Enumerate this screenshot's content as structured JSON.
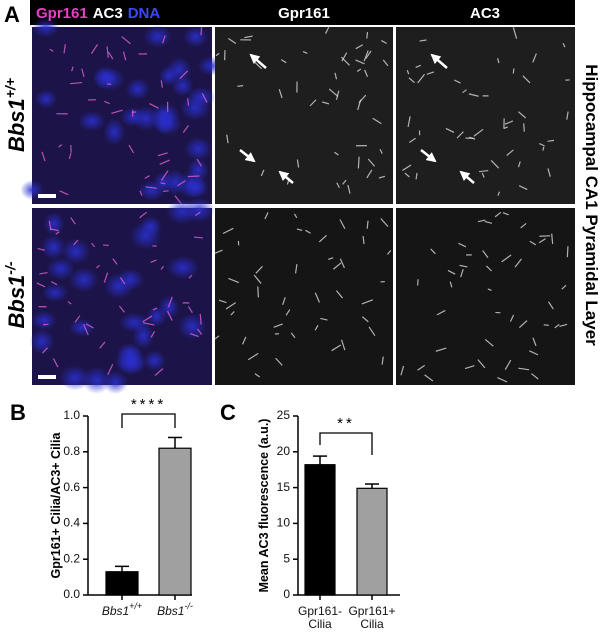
{
  "panel_a": {
    "label": "A",
    "header": {
      "merge": [
        {
          "text": "Gpr161",
          "color": "#e83ec8"
        },
        {
          "text": "AC3",
          "color": "#ffffff"
        },
        {
          "text": "DNA",
          "color": "#3b47ff"
        }
      ],
      "columns": [
        "Gpr161",
        "AC3"
      ]
    },
    "rows": [
      {
        "text": "Bbs1",
        "superscript": "+/+"
      },
      {
        "text": "Bbs1",
        "superscript": "-/-"
      }
    ],
    "side_label": "Hippocampal CA1 Pyramidal Layer"
  },
  "chart_data": [
    {
      "type": "bar",
      "panel_label": "B",
      "ylabel": "Gpr161+ Cilia/AC3+ Cilia",
      "categories": [
        {
          "text": "Bbs1",
          "superscript": "+/+"
        },
        {
          "text": "Bbs1",
          "superscript": "-/-"
        }
      ],
      "values": [
        0.13,
        0.82
      ],
      "errors": [
        0.03,
        0.06
      ],
      "colors": [
        "#000000",
        "#a0a0a0"
      ],
      "ylim": [
        0,
        1.0
      ],
      "yticks": [
        {
          "value": 0,
          "label": "0.0"
        },
        0.2,
        0.4,
        0.6,
        0.8,
        {
          "value": 1.0,
          "label": "1.0"
        }
      ],
      "significance": "****"
    },
    {
      "type": "bar",
      "panel_label": "C",
      "ylabel": "Mean AC3 fluorescence (a.u.)",
      "categories": [
        [
          "Gpr161-",
          "Cilia"
        ],
        [
          "Gpr161+",
          "Cilia"
        ]
      ],
      "values": [
        18.2,
        14.9
      ],
      "errors": [
        1.2,
        0.6
      ],
      "colors": [
        "#000000",
        "#a0a0a0"
      ],
      "ylim": [
        0,
        25
      ],
      "yticks": [
        0,
        5,
        10,
        15,
        20,
        25
      ],
      "significance": "**"
    }
  ]
}
